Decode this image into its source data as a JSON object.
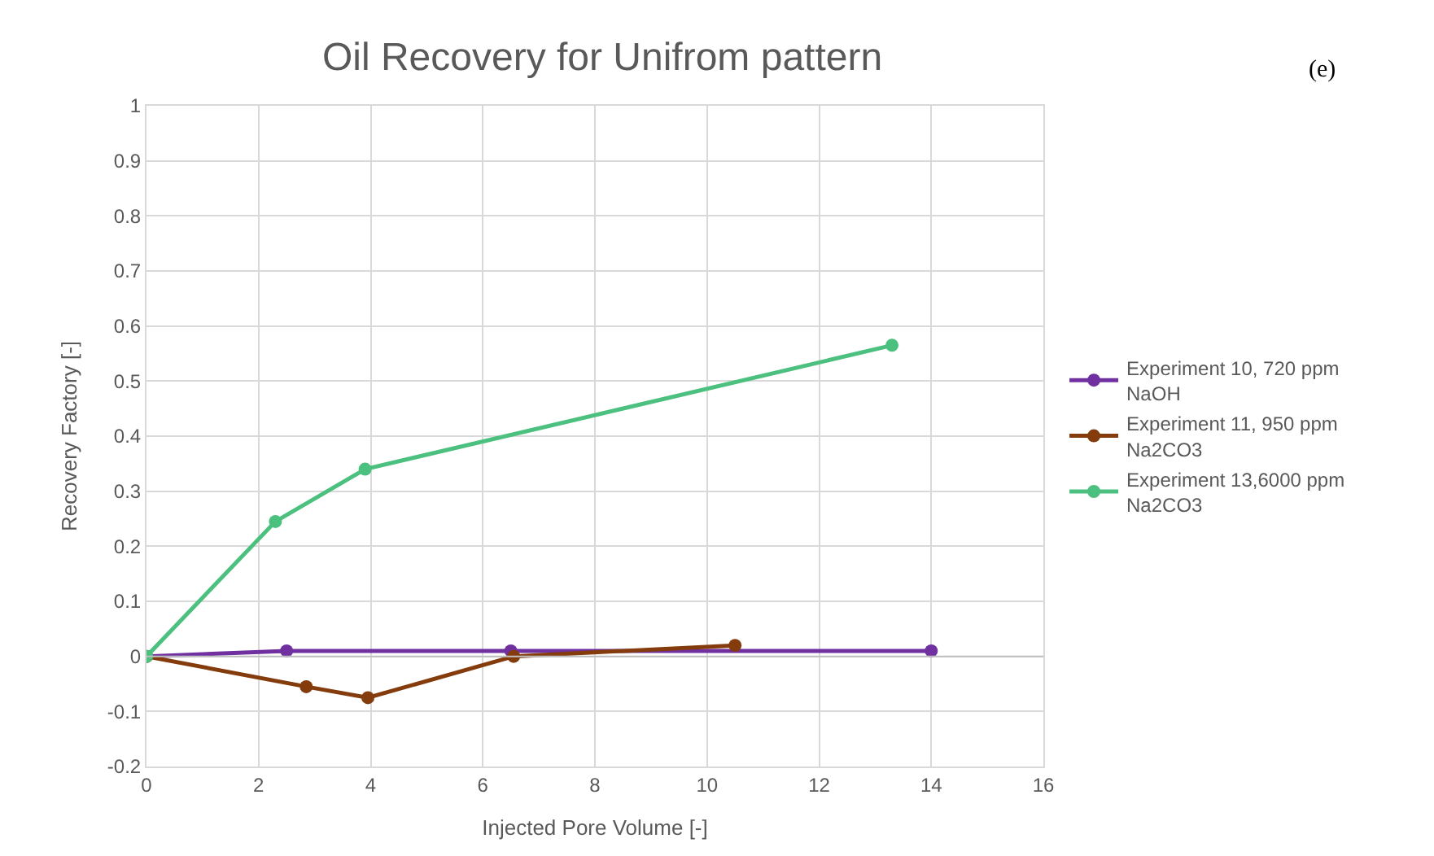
{
  "chart_data": {
    "type": "line",
    "title": "Oil Recovery for Unifrom pattern",
    "xlabel": "Injected Pore Volume [-]",
    "ylabel": "Recovery Factory [-]",
    "annotations": [
      "(e)"
    ],
    "series": [
      {
        "name": "Experiment 10, 720 ppm NaOH",
        "color": "#7030a0",
        "x": [
          0,
          2.5,
          6.5,
          14
        ],
        "values": [
          0,
          0.01,
          0.01,
          0.01
        ]
      },
      {
        "name": "Experiment 11, 950 ppm Na2CO3",
        "color": "#843c0c",
        "x": [
          0,
          2.85,
          3.95,
          6.55,
          10.5
        ],
        "values": [
          0,
          -0.055,
          -0.075,
          0,
          0.02
        ]
      },
      {
        "name": "Experiment 13,6000 ppm Na2CO3",
        "color": "#4cc07e",
        "x": [
          0,
          2.3,
          3.9,
          13.3
        ],
        "values": [
          0,
          0.245,
          0.34,
          0.565
        ]
      }
    ],
    "xlim": [
      0,
      16
    ],
    "xticks": [
      0,
      2,
      4,
      6,
      8,
      10,
      12,
      14,
      16
    ],
    "ylim": [
      -0.2,
      1
    ],
    "yticks": [
      -0.2,
      -0.1,
      0,
      0.1,
      0.2,
      0.3,
      0.4,
      0.5,
      0.6,
      0.7,
      0.8,
      0.9,
      1
    ],
    "grid": true,
    "legend": "right",
    "marker": "circle",
    "line_style": "solid"
  }
}
